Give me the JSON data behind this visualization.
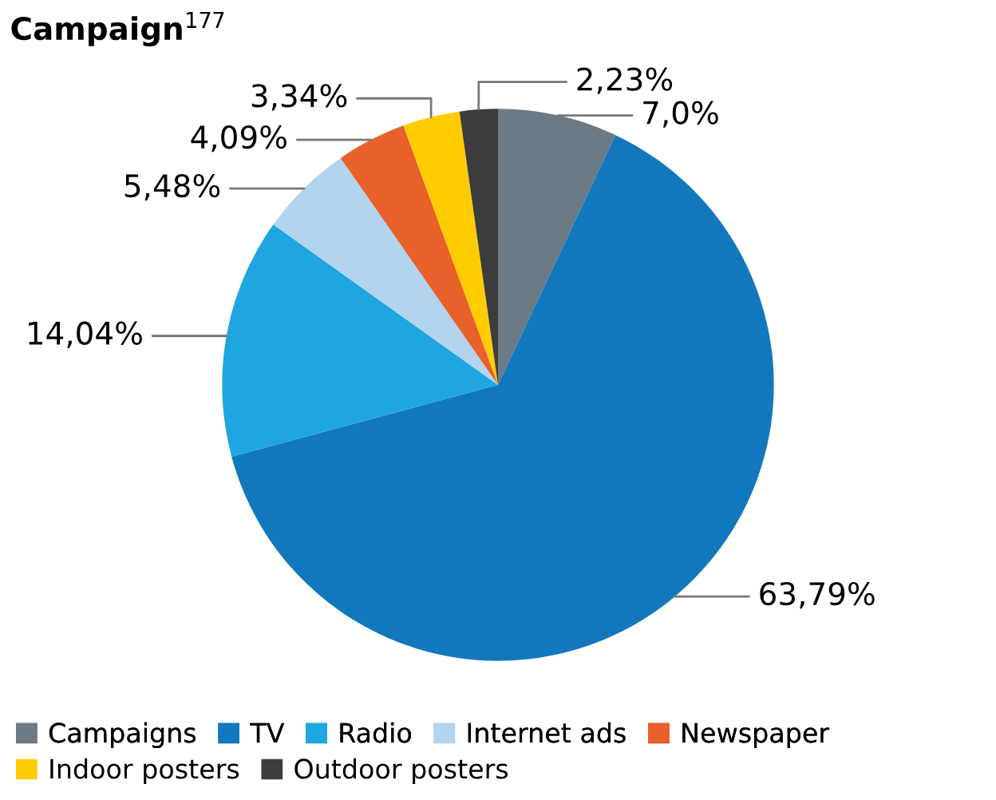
{
  "chart_data": {
    "type": "pie",
    "title": "Campaign$^{177}$",
    "categories": [
      "Campaigns",
      "TV",
      "Radio",
      "Internet ads",
      "Newspaper",
      "Indoor posters",
      "Outdoor posters"
    ],
    "values": [
      7.0,
      63.79,
      14.04,
      5.48,
      4.09,
      3.34,
      2.23
    ],
    "value_labels": [
      "7,0%",
      "63,79%",
      "14,04%",
      "5,48%",
      "4,09%",
      "3,34%",
      "2,23%"
    ],
    "colors": [
      "#6b7a85",
      "#1278be",
      "#1fa6e0",
      "#b2d4ef",
      "#e8602a",
      "#ffcc00",
      "#3c3c3c"
    ],
    "legend": "bottom"
  }
}
